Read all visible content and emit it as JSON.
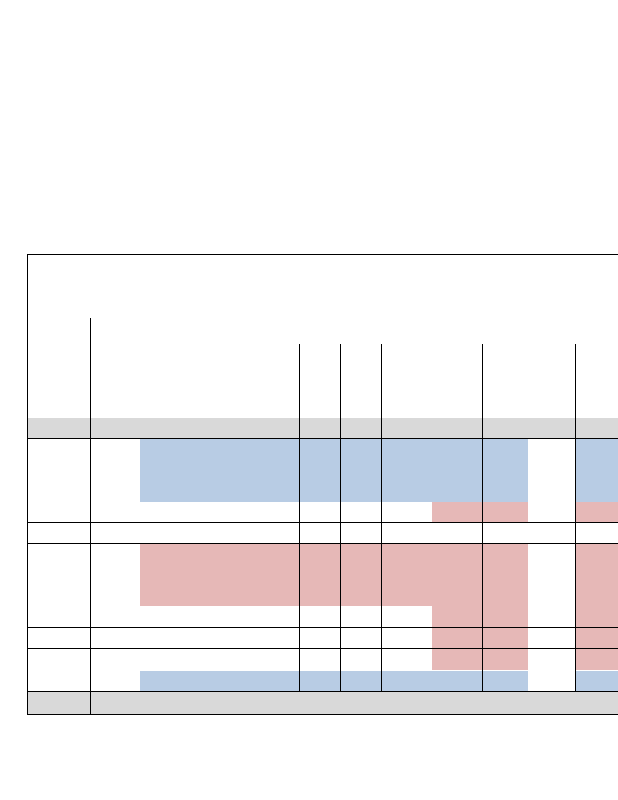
{
  "document": {
    "title": "",
    "table": {
      "header_rows": [],
      "rows": [],
      "footer": ""
    }
  },
  "colors": {
    "highlight_blue": "#b8cce4",
    "highlight_red": "#e6b8b7",
    "band_grey": "#d9d9d9",
    "rule": "#000000"
  }
}
